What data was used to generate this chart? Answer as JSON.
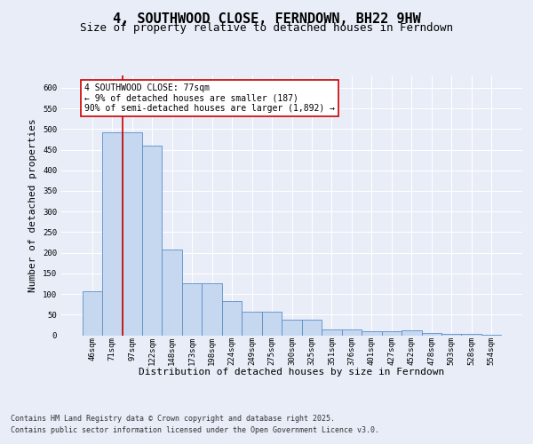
{
  "title": "4, SOUTHWOOD CLOSE, FERNDOWN, BH22 9HW",
  "subtitle": "Size of property relative to detached houses in Ferndown",
  "xlabel": "Distribution of detached houses by size in Ferndown",
  "ylabel": "Number of detached properties",
  "footer_line1": "Contains HM Land Registry data © Crown copyright and database right 2025.",
  "footer_line2": "Contains public sector information licensed under the Open Government Licence v3.0.",
  "categories": [
    "46sqm",
    "71sqm",
    "97sqm",
    "122sqm",
    "148sqm",
    "173sqm",
    "198sqm",
    "224sqm",
    "249sqm",
    "275sqm",
    "300sqm",
    "325sqm",
    "351sqm",
    "376sqm",
    "401sqm",
    "427sqm",
    "452sqm",
    "478sqm",
    "503sqm",
    "528sqm",
    "554sqm"
  ],
  "values": [
    107,
    492,
    492,
    460,
    207,
    125,
    125,
    83,
    57,
    57,
    38,
    38,
    13,
    13,
    10,
    10,
    11,
    5,
    4,
    4,
    2
  ],
  "bar_color": "#c5d8f0",
  "bar_edge_color": "#5b8dc8",
  "annotation_text": "4 SOUTHWOOD CLOSE: 77sqm\n← 9% of detached houses are smaller (187)\n90% of semi-detached houses are larger (1,892) →",
  "vline_color": "#cc0000",
  "vline_x": 1.5,
  "ylim": [
    0,
    630
  ],
  "yticks": [
    0,
    50,
    100,
    150,
    200,
    250,
    300,
    350,
    400,
    450,
    500,
    550,
    600
  ],
  "bg_color": "#e8edf8",
  "grid_color": "#ffffff",
  "title_fontsize": 11,
  "subtitle_fontsize": 9,
  "axis_label_fontsize": 8,
  "tick_fontsize": 6.5,
  "footer_fontsize": 6,
  "ann_fontsize": 7
}
